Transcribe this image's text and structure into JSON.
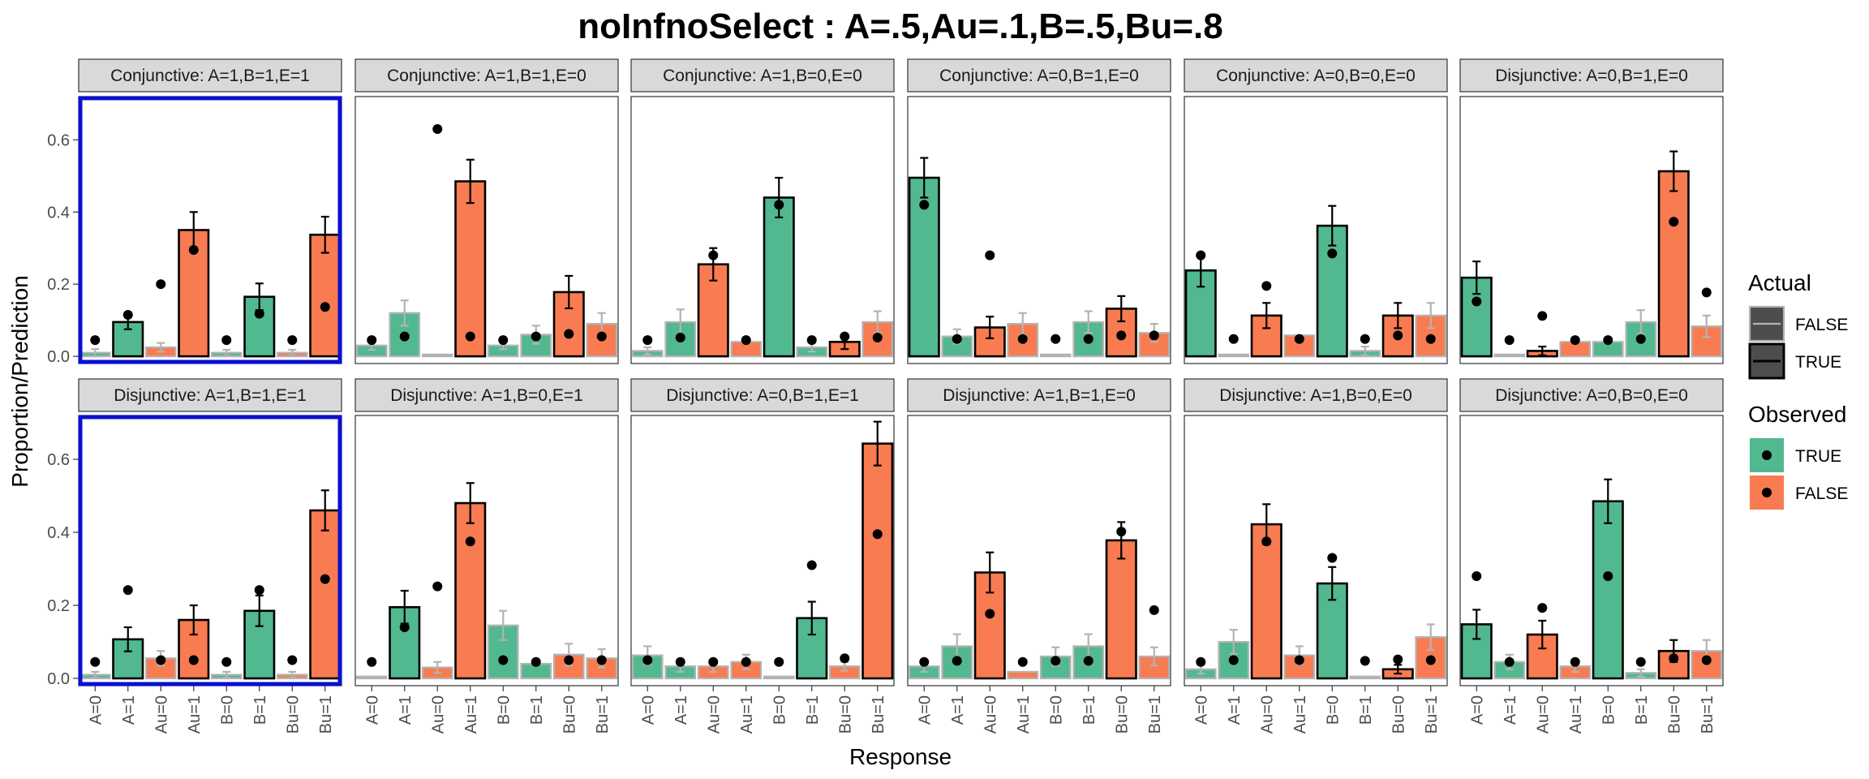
{
  "chart_data": {
    "type": "bar",
    "title": "noInfnoSelect : A=.5,Au=.1,B=.5,Bu=.8",
    "xlabel": "Response",
    "ylabel": "Proportion/Prediction",
    "ylim": [
      -0.02,
      0.72
    ],
    "yticks": [
      "0.0",
      "0.2",
      "0.4",
      "0.6"
    ],
    "categories": [
      "A=0",
      "A=1",
      "Au=0",
      "Au=1",
      "B=0",
      "B=1",
      "Bu=0",
      "Bu=1"
    ],
    "legend": {
      "placement": "right",
      "actual": {
        "title": "Actual",
        "entries": [
          "FALSE",
          "TRUE"
        ]
      },
      "observed": {
        "title": "Observed",
        "entries": [
          "TRUE",
          "FALSE"
        ]
      }
    },
    "colors": {
      "observed_true": "#52b890",
      "observed_false": "#f87b51",
      "actual_false_stroke": "#b3b3b3",
      "actual_true_stroke": "#000000",
      "highlight": "#0a10d0",
      "strip_fill": "#d9d9d9"
    },
    "panels": [
      {
        "label": "Conjunctive: A=1,B=1,E=1",
        "highlight": true,
        "observed": [
          true,
          true,
          false,
          false,
          true,
          true,
          false,
          false
        ],
        "actual": [
          false,
          true,
          false,
          true,
          false,
          true,
          false,
          true
        ],
        "values": [
          0.01,
          0.095,
          0.025,
          0.35,
          0.01,
          0.165,
          0.01,
          0.337
        ],
        "errors": [
          0.01,
          0.02,
          0.012,
          0.05,
          0.008,
          0.037,
          0.008,
          0.05
        ],
        "predictions": [
          0.045,
          0.115,
          0.2,
          0.295,
          0.045,
          0.118,
          0.045,
          0.137
        ]
      },
      {
        "label": "Conjunctive: A=1,B=1,E=0",
        "highlight": false,
        "observed": [
          true,
          true,
          false,
          false,
          true,
          true,
          false,
          false
        ],
        "actual": [
          false,
          false,
          false,
          true,
          false,
          false,
          true,
          false
        ],
        "values": [
          0.03,
          0.12,
          0.005,
          0.485,
          0.03,
          0.06,
          0.178,
          0.09
        ],
        "errors": [
          0.012,
          0.035,
          0.0,
          0.06,
          0.01,
          0.025,
          0.045,
          0.03
        ],
        "predictions": [
          0.045,
          0.055,
          0.63,
          0.055,
          0.045,
          0.055,
          0.062,
          0.055
        ]
      },
      {
        "label": "Conjunctive: A=1,B=0,E=0",
        "highlight": false,
        "observed": [
          true,
          true,
          false,
          false,
          true,
          true,
          false,
          false
        ],
        "actual": [
          false,
          false,
          true,
          false,
          true,
          false,
          true,
          false
        ],
        "values": [
          0.015,
          0.095,
          0.255,
          0.04,
          0.44,
          0.025,
          0.04,
          0.095
        ],
        "errors": [
          0.01,
          0.035,
          0.045,
          0.0,
          0.055,
          0.012,
          0.02,
          0.03
        ],
        "predictions": [
          0.045,
          0.052,
          0.28,
          0.045,
          0.42,
          0.045,
          0.055,
          0.052
        ]
      },
      {
        "label": "Conjunctive: A=0,B=1,E=0",
        "highlight": false,
        "observed": [
          true,
          true,
          false,
          false,
          true,
          true,
          false,
          false
        ],
        "actual": [
          true,
          false,
          true,
          false,
          false,
          false,
          true,
          false
        ],
        "values": [
          0.495,
          0.055,
          0.08,
          0.09,
          0.005,
          0.095,
          0.132,
          0.065
        ],
        "errors": [
          0.055,
          0.02,
          0.03,
          0.03,
          0.0,
          0.03,
          0.035,
          0.025
        ],
        "predictions": [
          0.42,
          0.048,
          0.28,
          0.048,
          0.048,
          0.048,
          0.058,
          0.058
        ]
      },
      {
        "label": "Conjunctive: A=0,B=0,E=0",
        "highlight": false,
        "observed": [
          true,
          true,
          false,
          false,
          true,
          true,
          false,
          false
        ],
        "actual": [
          true,
          false,
          true,
          false,
          true,
          false,
          true,
          false
        ],
        "values": [
          0.238,
          0.005,
          0.113,
          0.058,
          0.362,
          0.015,
          0.113,
          0.113
        ],
        "errors": [
          0.045,
          0.0,
          0.035,
          0.0,
          0.055,
          0.012,
          0.035,
          0.035
        ],
        "predictions": [
          0.28,
          0.048,
          0.195,
          0.048,
          0.285,
          0.048,
          0.058,
          0.048
        ]
      },
      {
        "label": "Disjunctive: A=0,B=1,E=0",
        "highlight": false,
        "observed": [
          true,
          true,
          false,
          false,
          true,
          true,
          false,
          false
        ],
        "actual": [
          true,
          false,
          true,
          false,
          false,
          false,
          true,
          false
        ],
        "values": [
          0.218,
          0.005,
          0.015,
          0.04,
          0.04,
          0.095,
          0.513,
          0.083
        ],
        "errors": [
          0.045,
          0.0,
          0.012,
          0.0,
          0.0,
          0.033,
          0.055,
          0.03
        ],
        "predictions": [
          0.152,
          0.045,
          0.112,
          0.045,
          0.045,
          0.048,
          0.373,
          0.177
        ]
      },
      {
        "label": "Disjunctive: A=1,B=1,E=1",
        "highlight": true,
        "observed": [
          true,
          true,
          false,
          false,
          true,
          true,
          false,
          false
        ],
        "actual": [
          false,
          true,
          false,
          true,
          false,
          true,
          false,
          true
        ],
        "values": [
          0.01,
          0.107,
          0.055,
          0.16,
          0.01,
          0.185,
          0.01,
          0.46
        ],
        "errors": [
          0.008,
          0.033,
          0.02,
          0.04,
          0.008,
          0.042,
          0.008,
          0.055
        ],
        "predictions": [
          0.045,
          0.242,
          0.05,
          0.05,
          0.045,
          0.242,
          0.05,
          0.272
        ]
      },
      {
        "label": "Disjunctive: A=1,B=0,E=1",
        "highlight": false,
        "observed": [
          true,
          true,
          false,
          false,
          true,
          true,
          false,
          false
        ],
        "actual": [
          false,
          true,
          false,
          true,
          false,
          false,
          false,
          false
        ],
        "values": [
          0.005,
          0.195,
          0.03,
          0.48,
          0.145,
          0.04,
          0.065,
          0.055
        ],
        "errors": [
          0.0,
          0.045,
          0.015,
          0.055,
          0.04,
          0.0,
          0.03,
          0.025
        ],
        "predictions": [
          0.045,
          0.14,
          0.252,
          0.375,
          0.05,
          0.045,
          0.05,
          0.05
        ]
      },
      {
        "label": "Disjunctive: A=0,B=1,E=1",
        "highlight": false,
        "observed": [
          true,
          true,
          false,
          false,
          true,
          true,
          false,
          false
        ],
        "actual": [
          false,
          false,
          false,
          false,
          false,
          true,
          false,
          true
        ],
        "values": [
          0.063,
          0.033,
          0.033,
          0.045,
          0.005,
          0.165,
          0.033,
          0.643
        ],
        "errors": [
          0.025,
          0.015,
          0.015,
          0.02,
          0.0,
          0.045,
          0.012,
          0.06
        ],
        "predictions": [
          0.05,
          0.045,
          0.045,
          0.045,
          0.045,
          0.31,
          0.055,
          0.395
        ]
      },
      {
        "label": "Disjunctive: A=1,B=1,E=0",
        "highlight": false,
        "observed": [
          true,
          true,
          false,
          false,
          true,
          true,
          false,
          false
        ],
        "actual": [
          false,
          false,
          true,
          false,
          false,
          false,
          true,
          false
        ],
        "values": [
          0.033,
          0.088,
          0.29,
          0.018,
          0.06,
          0.088,
          0.378,
          0.06
        ],
        "errors": [
          0.015,
          0.033,
          0.055,
          0.0,
          0.025,
          0.033,
          0.05,
          0.025
        ],
        "predictions": [
          0.045,
          0.048,
          0.177,
          0.045,
          0.048,
          0.048,
          0.402,
          0.187
        ]
      },
      {
        "label": "Disjunctive: A=1,B=0,E=0",
        "highlight": false,
        "observed": [
          true,
          true,
          false,
          false,
          true,
          true,
          false,
          false
        ],
        "actual": [
          false,
          false,
          true,
          false,
          true,
          false,
          true,
          false
        ],
        "values": [
          0.025,
          0.1,
          0.422,
          0.063,
          0.26,
          0.005,
          0.025,
          0.113
        ],
        "errors": [
          0.012,
          0.033,
          0.055,
          0.025,
          0.045,
          0.0,
          0.012,
          0.035
        ],
        "predictions": [
          0.045,
          0.05,
          0.375,
          0.05,
          0.33,
          0.048,
          0.052,
          0.05
        ]
      },
      {
        "label": "Disjunctive: A=0,B=0,E=0",
        "highlight": false,
        "observed": [
          true,
          true,
          false,
          false,
          true,
          true,
          false,
          false
        ],
        "actual": [
          true,
          false,
          true,
          false,
          true,
          false,
          true,
          false
        ],
        "values": [
          0.148,
          0.045,
          0.12,
          0.033,
          0.485,
          0.015,
          0.075,
          0.075
        ],
        "errors": [
          0.04,
          0.02,
          0.038,
          0.015,
          0.06,
          0.01,
          0.03,
          0.03
        ],
        "predictions": [
          0.28,
          0.045,
          0.193,
          0.045,
          0.28,
          0.045,
          0.055,
          0.05
        ]
      }
    ]
  }
}
